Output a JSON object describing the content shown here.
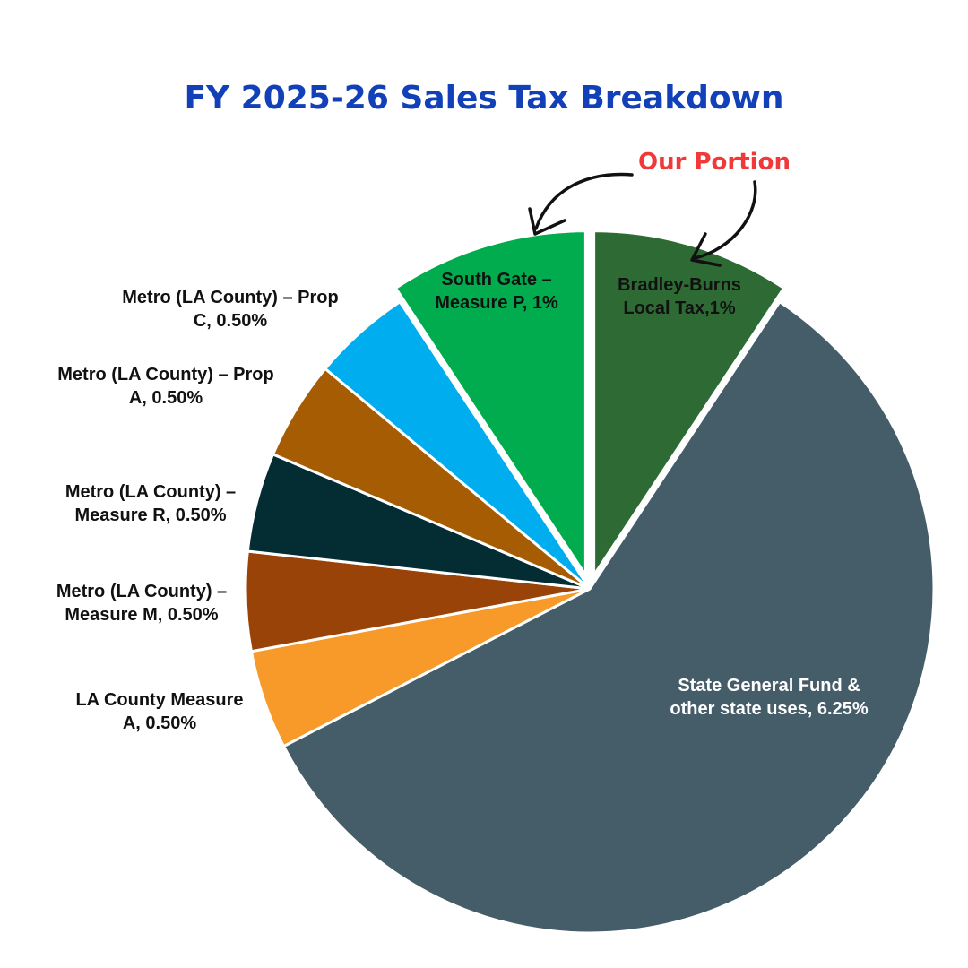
{
  "chart_data": {
    "type": "pie",
    "title": "FY 2025-26 Sales Tax Breakdown",
    "annotation": "Our Portion",
    "slices": [
      {
        "label": [
          "Bradley-Burns",
          "Local Tax,1%"
        ],
        "value": 1.0,
        "color": "#2e6b34",
        "text_color": "#111111",
        "exploded": true
      },
      {
        "label": [
          "State General Fund &",
          "other state uses, 6.25%"
        ],
        "value": 6.25,
        "color": "#455d68",
        "text_color": "#ffffff",
        "exploded": false
      },
      {
        "label": [
          "LA County Measure",
          "A, 0.50%"
        ],
        "value": 0.5,
        "color": "#f79a2a",
        "text_color": "#111111",
        "exploded": false
      },
      {
        "label": [
          "Metro (LA County) –",
          "Measure M, 0.50%"
        ],
        "value": 0.5,
        "color": "#9a4309",
        "text_color": "#111111",
        "exploded": false
      },
      {
        "label": [
          "Metro (LA County) –",
          "Measure R, 0.50%"
        ],
        "value": 0.5,
        "color": "#042c33",
        "text_color": "#111111",
        "exploded": false
      },
      {
        "label": [
          "Metro (LA County) – Prop",
          "A, 0.50%"
        ],
        "value": 0.5,
        "color": "#a65c03",
        "text_color": "#111111",
        "exploded": false
      },
      {
        "label": [
          "Metro (LA County) – Prop",
          "C, 0.50%"
        ],
        "value": 0.5,
        "color": "#00adef",
        "text_color": "#111111",
        "exploded": false
      },
      {
        "label": [
          "South Gate –",
          "Measure P, 1%"
        ],
        "value": 1.0,
        "color": "#00ac4e",
        "text_color": "#111111",
        "exploded": true
      }
    ],
    "colors": {
      "title": "#1240b8",
      "annotation": "#f03a3a",
      "arrow": "#111111"
    }
  }
}
